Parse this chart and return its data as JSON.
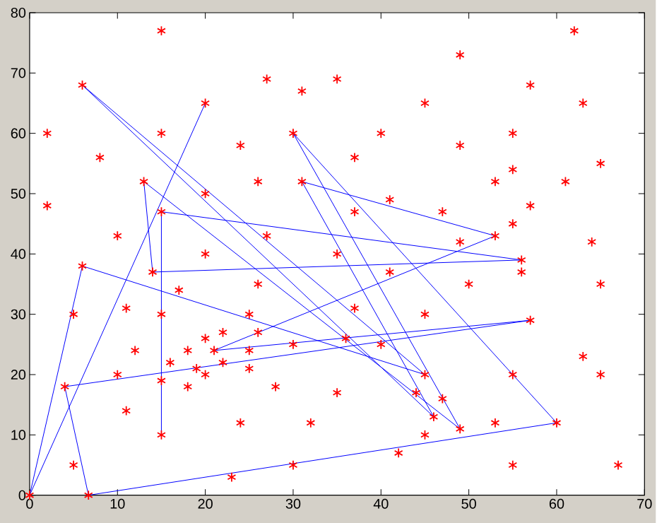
{
  "chart_data": {
    "type": "scatter",
    "xlim": [
      0,
      70
    ],
    "ylim": [
      0,
      80
    ],
    "xticks": [
      0,
      10,
      20,
      30,
      40,
      50,
      60,
      70
    ],
    "yticks": [
      0,
      10,
      20,
      30,
      40,
      50,
      60,
      70,
      80
    ],
    "grid": false,
    "legend": false,
    "series": [
      {
        "type": "line",
        "color": "#0000ff",
        "marker": "none",
        "line_style": "solid",
        "x": [
          20,
          0,
          6,
          45,
          6,
          46,
          31,
          53,
          21,
          57,
          4,
          6.7,
          60,
          30,
          49,
          13,
          14,
          56,
          15,
          15
        ],
        "values": [
          65,
          0,
          38,
          20,
          68,
          13,
          52,
          43,
          24,
          29,
          18,
          0,
          12,
          60,
          11,
          52,
          37,
          39,
          47,
          10
        ]
      },
      {
        "type": "scatter",
        "color": "#ff0000",
        "marker": "cross",
        "x": [
          15,
          6,
          2,
          8,
          15,
          2,
          10,
          20,
          27,
          31,
          35,
          24,
          30,
          26,
          31,
          13,
          20,
          15,
          27,
          20,
          35,
          62,
          49,
          57,
          63,
          45,
          40,
          49,
          55,
          37,
          65,
          53,
          55,
          61,
          41,
          37,
          47,
          57,
          55,
          49,
          64,
          53,
          56,
          6,
          14,
          17,
          26,
          5,
          11,
          15,
          25,
          20,
          22,
          26,
          12,
          21,
          25,
          18,
          30,
          16,
          22,
          10,
          19,
          20,
          25,
          4,
          15,
          18,
          28,
          11,
          24,
          32,
          15,
          5,
          30,
          23,
          0,
          6.7,
          56,
          41,
          50,
          65,
          37,
          45,
          57,
          36,
          40,
          63,
          45,
          55,
          65,
          35,
          44,
          47,
          46,
          49,
          53,
          60,
          45,
          42,
          55,
          67
        ],
        "values": [
          77,
          68,
          60,
          56,
          60,
          48,
          43,
          65,
          69,
          67,
          69,
          58,
          60,
          52,
          52,
          52,
          50,
          47,
          43,
          40,
          40,
          77,
          73,
          68,
          65,
          65,
          60,
          58,
          60,
          56,
          55,
          52,
          54,
          52,
          49,
          47,
          47,
          48,
          45,
          42,
          42,
          43,
          39,
          38,
          37,
          34,
          35,
          30,
          31,
          30,
          30,
          26,
          27,
          27,
          24,
          24,
          24,
          24,
          25,
          22,
          22,
          20,
          21,
          20,
          21,
          18,
          19,
          18,
          18,
          14,
          12,
          12,
          10,
          5,
          5,
          3,
          0,
          0,
          37,
          37,
          35,
          35,
          31,
          30,
          29,
          26,
          25,
          23,
          20,
          20,
          20,
          17,
          17,
          16,
          13,
          11,
          12,
          12,
          10,
          7,
          5,
          5
        ]
      }
    ]
  }
}
